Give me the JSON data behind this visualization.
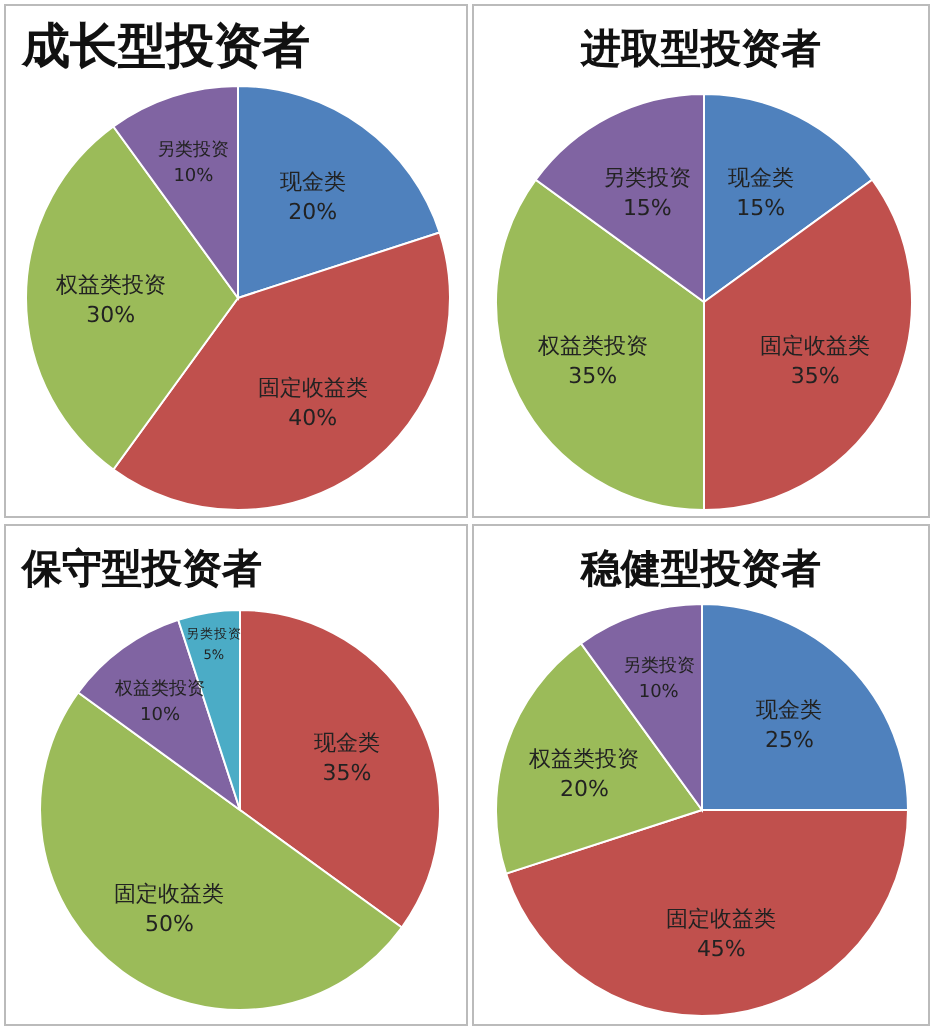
{
  "chart_data": [
    {
      "type": "pie",
      "title": "成长型投资者",
      "categories": [
        "现金类",
        "固定收益类",
        "权益类投资",
        "另类投资"
      ],
      "values": [
        20,
        40,
        30,
        10
      ],
      "value_labels": [
        "20%",
        "40%",
        "30%",
        "10%"
      ],
      "colors": [
        "#4f81bd",
        "#c0504d",
        "#9bbb59",
        "#8064a2"
      ]
    },
    {
      "type": "pie",
      "title": "进取型投资者",
      "categories": [
        "现金类",
        "固定收益类",
        "权益类投资",
        "另类投资"
      ],
      "values": [
        15,
        35,
        35,
        15
      ],
      "value_labels": [
        "15%",
        "35%",
        "35%",
        "15%"
      ],
      "colors": [
        "#4f81bd",
        "#c0504d",
        "#9bbb59",
        "#8064a2"
      ]
    },
    {
      "type": "pie",
      "title": "保守型投资者",
      "categories": [
        "现金类",
        "固定收益类",
        "权益类投资",
        "另类投资"
      ],
      "values": [
        35,
        50,
        10,
        5
      ],
      "value_labels": [
        "35%",
        "50%",
        "10%",
        "5%"
      ],
      "colors": [
        "#c0504d",
        "#9bbb59",
        "#8064a2",
        "#4bacc6"
      ]
    },
    {
      "type": "pie",
      "title": "稳健型投资者",
      "categories": [
        "现金类",
        "固定收益类",
        "权益类投资",
        "另类投资"
      ],
      "values": [
        25,
        45,
        20,
        10
      ],
      "value_labels": [
        "25%",
        "45%",
        "20%",
        "10%"
      ],
      "colors": [
        "#4f81bd",
        "#c0504d",
        "#9bbb59",
        "#8064a2"
      ]
    }
  ]
}
